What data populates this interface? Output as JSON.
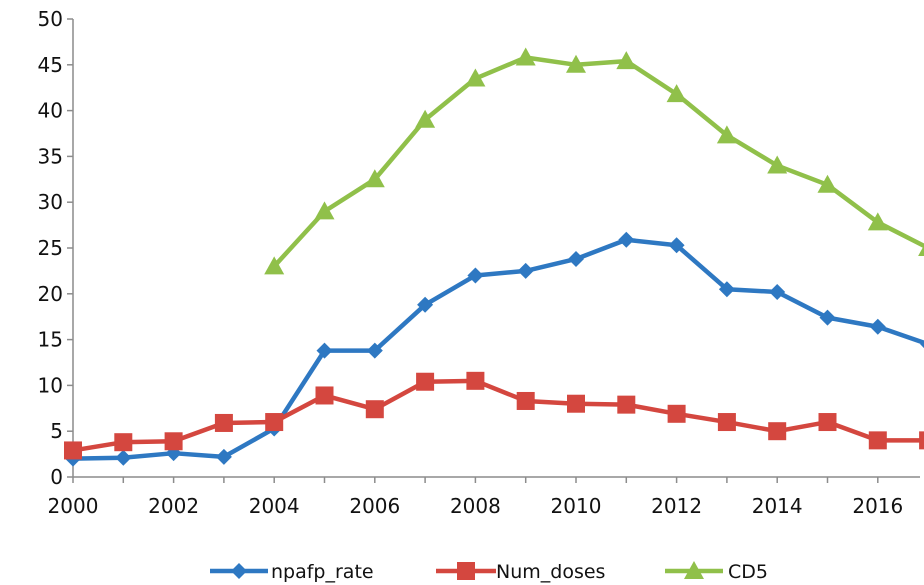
{
  "chart_data": {
    "type": "line",
    "title": "",
    "xlabel": "",
    "ylabel": "",
    "x": [
      2000,
      2001,
      2002,
      2003,
      2004,
      2005,
      2006,
      2007,
      2008,
      2009,
      2010,
      2011,
      2012,
      2013,
      2014,
      2015,
      2016,
      2017
    ],
    "xlim": [
      2000,
      2017
    ],
    "ylim": [
      0,
      50
    ],
    "x_ticks": [
      "2000",
      "2002",
      "2004",
      "2006",
      "2008",
      "2010",
      "2012",
      "2014",
      "2016"
    ],
    "y_ticks": [
      "0",
      "5",
      "10",
      "15",
      "20",
      "25",
      "30",
      "35",
      "40",
      "45",
      "50"
    ],
    "grid": false,
    "legend_position": "bottom",
    "series": [
      {
        "name": "npafp_rate",
        "color": "#2e78c2",
        "marker": "diamond",
        "values": [
          2.0,
          2.1,
          2.6,
          2.2,
          5.3,
          13.8,
          13.8,
          18.8,
          22.0,
          22.5,
          23.8,
          25.9,
          25.3,
          20.5,
          20.2,
          17.4,
          16.4,
          14.5
        ]
      },
      {
        "name": "Num_doses",
        "color": "#d4473f",
        "marker": "square",
        "values": [
          2.9,
          3.8,
          3.9,
          5.9,
          6.0,
          8.9,
          7.4,
          10.4,
          10.5,
          8.3,
          8.0,
          7.9,
          6.9,
          6.0,
          5.0,
          6.0,
          4.0,
          4.0
        ]
      },
      {
        "name": "CD5",
        "color": "#90c04a",
        "marker": "triangle",
        "values": [
          null,
          null,
          null,
          null,
          23.0,
          29.0,
          32.5,
          39.0,
          43.5,
          45.8,
          45.0,
          45.4,
          41.8,
          37.3,
          34.0,
          31.9,
          27.8,
          25.0
        ]
      }
    ]
  }
}
